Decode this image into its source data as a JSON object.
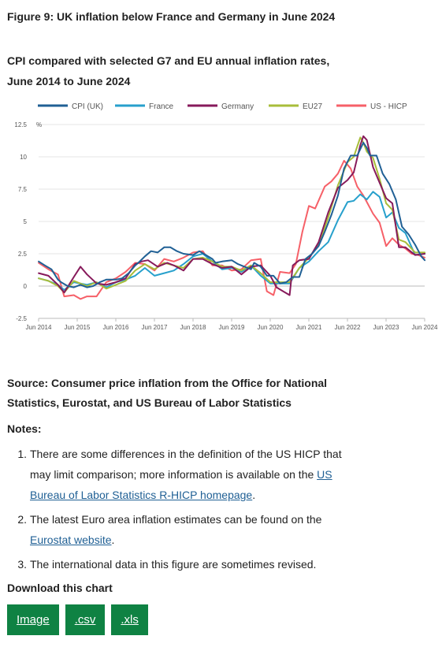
{
  "figure": {
    "title": "Figure 9: UK inflation below France and Germany in June 2024",
    "subtitle": "CPI compared with selected G7 and EU annual inflation rates, June 2014 to June 2024"
  },
  "chart_data": {
    "type": "line",
    "unit_label": "%",
    "ylim": [
      -2.5,
      12.5
    ],
    "yticks": [
      "12.5",
      "10",
      "7.5",
      "5",
      "2.5",
      "0",
      "-2.5"
    ],
    "ytick_values": [
      12.5,
      10,
      7.5,
      5,
      2.5,
      0,
      -2.5
    ],
    "xlim": [
      2014.417,
      2024.417
    ],
    "xticks": [
      "Jun 2014",
      "Jun 2015",
      "Jun 2016",
      "Jun 2017",
      "Jun 2018",
      "Jun 2019",
      "Jun 2020",
      "Jun 2021",
      "Jun 2022",
      "Jun 2023",
      "Jun 2024"
    ],
    "grid": true,
    "legend_position": "top",
    "series": [
      {
        "name": "CPI (UK)",
        "color": "#206095",
        "x": [
          2014.42,
          2014.58,
          2014.75,
          2014.92,
          2015.0,
          2015.17,
          2015.33,
          2015.5,
          2015.67,
          2015.83,
          2016.0,
          2016.17,
          2016.42,
          2016.58,
          2016.75,
          2016.92,
          2017.0,
          2017.17,
          2017.33,
          2017.5,
          2017.67,
          2017.83,
          2018.0,
          2018.17,
          2018.42,
          2018.58,
          2018.75,
          2018.92,
          2019.0,
          2019.17,
          2019.42,
          2019.58,
          2019.75,
          2019.92,
          2020.0,
          2020.17,
          2020.33,
          2020.5,
          2020.67,
          2020.83,
          2021.0,
          2021.17,
          2021.33,
          2021.5,
          2021.67,
          2021.83,
          2022.0,
          2022.17,
          2022.33,
          2022.5,
          2022.67,
          2022.83,
          2022.92,
          2023.0,
          2023.17,
          2023.33,
          2023.5,
          2023.67,
          2023.83,
          2024.0,
          2024.17,
          2024.33,
          2024.42
        ],
        "y": [
          1.9,
          1.6,
          1.3,
          0.5,
          0.3,
          0.0,
          -0.1,
          0.1,
          -0.1,
          0.0,
          0.3,
          0.5,
          0.5,
          0.6,
          1.0,
          1.6,
          1.8,
          2.3,
          2.7,
          2.6,
          3.0,
          3.0,
          2.7,
          2.5,
          2.4,
          2.7,
          2.4,
          2.1,
          1.8,
          1.9,
          2.0,
          1.7,
          1.5,
          1.3,
          1.8,
          1.5,
          0.8,
          0.8,
          0.2,
          0.3,
          0.7,
          0.7,
          2.1,
          2.5,
          3.1,
          4.2,
          5.5,
          7.0,
          9.1,
          10.1,
          10.1,
          11.1,
          10.7,
          10.1,
          10.1,
          8.7,
          7.9,
          6.7,
          4.6,
          4.0,
          3.2,
          2.3,
          2.0
        ]
      },
      {
        "name": "France",
        "color": "#27a0cc",
        "x": [
          2014.42,
          2014.67,
          2014.92,
          2015.08,
          2015.33,
          2015.67,
          2015.92,
          2016.17,
          2016.42,
          2016.67,
          2016.92,
          2017.17,
          2017.42,
          2017.67,
          2017.92,
          2018.17,
          2018.42,
          2018.67,
          2018.92,
          2019.17,
          2019.42,
          2019.67,
          2019.92,
          2020.17,
          2020.42,
          2020.67,
          2020.92,
          2021.17,
          2021.42,
          2021.67,
          2021.92,
          2022.17,
          2022.42,
          2022.58,
          2022.75,
          2022.92,
          2023.08,
          2023.25,
          2023.42,
          2023.58,
          2023.75,
          2023.92,
          2024.17,
          2024.42
        ],
        "y": [
          0.6,
          0.4,
          0.1,
          -0.3,
          0.3,
          0.1,
          0.3,
          -0.1,
          0.3,
          0.5,
          0.8,
          1.4,
          0.8,
          1.0,
          1.2,
          1.7,
          2.3,
          2.5,
          1.9,
          1.3,
          1.4,
          1.1,
          1.6,
          0.8,
          0.2,
          0.2,
          0.2,
          1.4,
          1.9,
          2.7,
          3.4,
          5.1,
          6.5,
          6.6,
          7.1,
          6.7,
          7.3,
          6.9,
          5.3,
          5.7,
          4.5,
          4.1,
          2.4,
          2.5
        ]
      },
      {
        "name": "Germany",
        "color": "#871a5b",
        "x": [
          2014.42,
          2014.67,
          2014.92,
          2015.08,
          2015.33,
          2015.5,
          2015.67,
          2015.92,
          2016.17,
          2016.42,
          2016.67,
          2016.92,
          2017.08,
          2017.25,
          2017.5,
          2017.75,
          2017.92,
          2018.17,
          2018.42,
          2018.67,
          2018.92,
          2019.17,
          2019.42,
          2019.67,
          2019.92,
          2020.17,
          2020.42,
          2020.58,
          2020.75,
          2020.92,
          2021.0,
          2021.17,
          2021.42,
          2021.67,
          2021.92,
          2022.17,
          2022.42,
          2022.58,
          2022.75,
          2022.83,
          2022.92,
          2023.08,
          2023.25,
          2023.42,
          2023.58,
          2023.75,
          2023.92,
          2024.17,
          2024.42
        ],
        "y": [
          1.0,
          0.8,
          0.1,
          -0.5,
          0.7,
          1.5,
          0.9,
          0.2,
          0.1,
          0.3,
          0.6,
          1.7,
          1.9,
          2.0,
          1.5,
          1.8,
          1.6,
          1.2,
          2.1,
          2.1,
          1.7,
          1.4,
          1.5,
          0.9,
          1.5,
          1.6,
          0.8,
          -0.1,
          -0.4,
          -0.7,
          1.6,
          2.0,
          2.1,
          3.4,
          5.7,
          7.6,
          8.2,
          8.8,
          10.9,
          11.6,
          11.3,
          9.2,
          8.0,
          6.8,
          6.4,
          3.0,
          3.0,
          2.4,
          2.5
        ]
      },
      {
        "name": "EU27",
        "color": "#a8bd3a",
        "x": [
          2014.42,
          2014.67,
          2014.92,
          2015.08,
          2015.33,
          2015.67,
          2015.92,
          2016.17,
          2016.42,
          2016.67,
          2016.92,
          2017.17,
          2017.42,
          2017.67,
          2017.92,
          2018.17,
          2018.42,
          2018.67,
          2018.92,
          2019.17,
          2019.42,
          2019.67,
          2019.92,
          2020.17,
          2020.42,
          2020.67,
          2020.92,
          2021.17,
          2021.42,
          2021.67,
          2021.92,
          2022.17,
          2022.42,
          2022.58,
          2022.75,
          2022.83,
          2022.92,
          2023.08,
          2023.25,
          2023.42,
          2023.58,
          2023.75,
          2023.92,
          2024.17,
          2024.42
        ],
        "y": [
          0.6,
          0.4,
          0.0,
          -0.5,
          0.4,
          0.0,
          0.3,
          -0.2,
          0.1,
          0.4,
          1.2,
          1.7,
          1.3,
          1.8,
          1.6,
          1.4,
          2.1,
          2.2,
          1.9,
          1.5,
          1.5,
          1.2,
          1.6,
          1.0,
          0.3,
          0.3,
          0.3,
          1.4,
          2.2,
          3.2,
          5.3,
          7.8,
          9.6,
          10.0,
          11.5,
          11.1,
          10.4,
          9.9,
          8.3,
          6.4,
          5.9,
          3.6,
          3.4,
          2.6,
          2.6
        ]
      },
      {
        "name": "US - HICP",
        "color": "#f66068",
        "x": [
          2014.42,
          2014.67,
          2014.92,
          2015.08,
          2015.33,
          2015.5,
          2015.67,
          2015.92,
          2016.17,
          2016.42,
          2016.67,
          2016.92,
          2017.17,
          2017.42,
          2017.67,
          2017.92,
          2018.17,
          2018.42,
          2018.67,
          2018.92,
          2019.17,
          2019.42,
          2019.67,
          2019.92,
          2020.17,
          2020.33,
          2020.5,
          2020.67,
          2020.92,
          2021.08,
          2021.25,
          2021.42,
          2021.58,
          2021.83,
          2022.0,
          2022.17,
          2022.33,
          2022.5,
          2022.67,
          2022.83,
          2022.92,
          2023.08,
          2023.25,
          2023.42,
          2023.58,
          2023.75,
          2023.92,
          2024.08,
          2024.25,
          2024.42
        ],
        "y": [
          1.8,
          1.3,
          0.9,
          -0.8,
          -0.7,
          -1.0,
          -0.8,
          -0.8,
          0.3,
          0.6,
          1.1,
          1.8,
          1.7,
          1.2,
          2.1,
          1.9,
          2.2,
          2.6,
          2.7,
          1.6,
          1.6,
          1.2,
          1.3,
          2.0,
          2.1,
          -0.4,
          -0.7,
          1.1,
          1.0,
          1.7,
          4.2,
          6.2,
          6.0,
          7.7,
          8.1,
          8.7,
          9.7,
          9.1,
          7.7,
          7.0,
          6.5,
          5.6,
          4.9,
          3.1,
          3.7,
          3.2,
          2.9,
          2.5,
          2.4,
          2.2
        ]
      }
    ]
  },
  "source": "Source: Consumer price inflation from the Office for National Statistics, Eurostat, and US Bureau of Labor Statistics",
  "notes": {
    "heading": "Notes:",
    "items": [
      {
        "num": "1.",
        "text": "There are some differences in the definition of the US HICP that may limit comparison; more information is available on the ",
        "link": "US Bureau of Labor Statistics R-HICP homepage",
        "after": "."
      },
      {
        "num": "2.",
        "text": "The latest Euro area inflation estimates can be found on the ",
        "link": "Eurostat website",
        "after": "."
      },
      {
        "num": "3.",
        "text": "The international data in this figure are sometimes revised.",
        "link": "",
        "after": ""
      }
    ]
  },
  "download": {
    "heading": "Download this chart",
    "buttons": [
      "Image",
      ".csv",
      ".xls"
    ]
  }
}
